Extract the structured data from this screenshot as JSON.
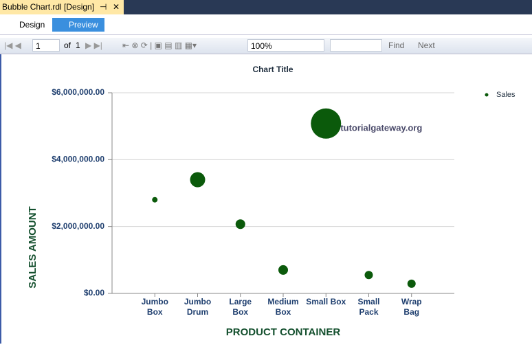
{
  "ui": {
    "tab": "Bubble Chart.rdl [Design]",
    "design": "Design",
    "preview": "Preview",
    "page": "1",
    "of": "of",
    "pages": "1",
    "zoom": "100%",
    "find": "Find",
    "next": "Next"
  },
  "chart_data": {
    "type": "bubble",
    "title": "Chart Title",
    "x_label": "PRODUCT CONTAINER",
    "y_label": "SALES AMOUNT",
    "annotation": "©tutorialgateway.org",
    "categories": [
      "Jumbo\nBox",
      "Jumbo\nDrum",
      "Large\nBox",
      "Medium\nBox",
      "Small Box",
      "Small\nPack",
      "Wrap\nBag"
    ],
    "series": [
      {
        "name": "Sales",
        "color": "#0b5a0b",
        "values": [
          2800000,
          3400000,
          2070000,
          700000,
          5080000,
          550000,
          290000
        ],
        "sizes": [
          16,
          121,
          49,
          49,
          484,
          36,
          36
        ]
      }
    ],
    "ylim": [
      0,
      6000000
    ],
    "yticks": [
      {
        "value": 0,
        "label": "$0.00"
      },
      {
        "value": 2000000,
        "label": "$2,000,000.00"
      },
      {
        "value": 4000000,
        "label": "$4,000,000.00"
      },
      {
        "value": 6000000,
        "label": "$6,000,000.00"
      }
    ],
    "grid": true,
    "legend": "top-right"
  }
}
